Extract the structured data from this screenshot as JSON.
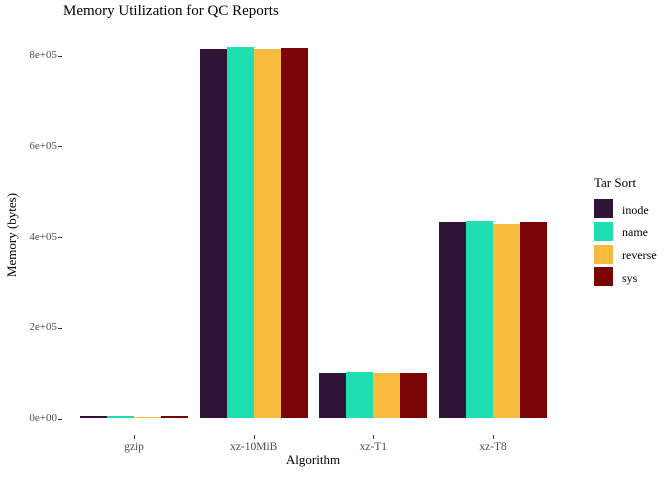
{
  "chart_data": {
    "type": "bar",
    "title": "Memory Utilization for QC Reports",
    "xlabel": "Algorithm",
    "ylabel": "Memory (bytes)",
    "categories": [
      "gzip",
      "xz-10MiB",
      "xz-T1",
      "xz-T8"
    ],
    "series": [
      {
        "name": "inode",
        "color": "#2F1438",
        "values": [
          5500,
          815000,
          99500,
          433000
        ]
      },
      {
        "name": "name",
        "color": "#1EDFB0",
        "values": [
          6200,
          819000,
          101500,
          435000
        ]
      },
      {
        "name": "reverse",
        "color": "#F8BB3D",
        "values": [
          2600,
          814000,
          101000,
          429000
        ]
      },
      {
        "name": "sys",
        "color": "#7A0403",
        "values": [
          4800,
          817000,
          99500,
          433000
        ]
      }
    ],
    "legend_title": "Tar Sort",
    "legend_position": "right",
    "y_ticks": [
      {
        "value": 0,
        "label": "0e+00"
      },
      {
        "value": 200000,
        "label": "2e+05"
      },
      {
        "value": 400000,
        "label": "4e+05"
      },
      {
        "value": 600000,
        "label": "6e+05"
      },
      {
        "value": 800000,
        "label": "8e+05"
      }
    ],
    "ylim": [
      0,
      860000
    ],
    "grid": false,
    "bar_grouping": "dodge"
  }
}
